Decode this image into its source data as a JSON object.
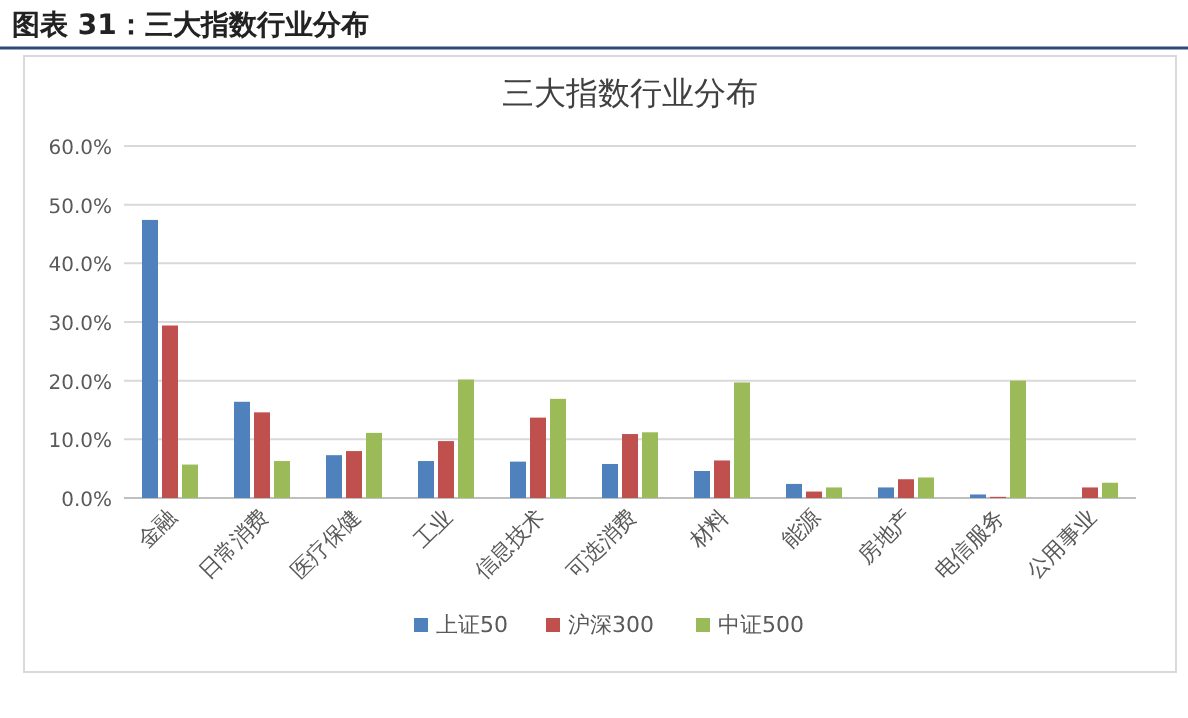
{
  "chart_data": {
    "type": "bar",
    "title": "图表 31：三大指数行业分布",
    "subtitle": "三大指数行业分布",
    "categories": [
      "金融",
      "日常消费",
      "医疗保健",
      "工业",
      "信息技术",
      "可选消费",
      "材料",
      "能源",
      "房地产",
      "电信服务",
      "公用事业"
    ],
    "series": [
      {
        "name": "上证50",
        "color": "#4f81bd",
        "values": [
          47.4,
          16.4,
          7.3,
          6.3,
          6.2,
          5.8,
          4.6,
          2.4,
          1.8,
          0.6,
          0
        ]
      },
      {
        "name": "沪深300",
        "color": "#c0504d",
        "values": [
          29.4,
          14.6,
          8.0,
          9.7,
          13.7,
          10.9,
          6.4,
          1.1,
          3.2,
          0.2,
          1.8
        ]
      },
      {
        "name": "中证500",
        "color": "#9bbb59",
        "values": [
          5.7,
          6.3,
          11.1,
          20.2,
          16.9,
          11.2,
          19.7,
          1.8,
          3.5,
          20.0,
          2.6
        ]
      }
    ],
    "ylim": [
      0,
      60
    ],
    "yticks": [
      {
        "value": 0,
        "label": "0.0%"
      },
      {
        "value": 10,
        "label": "10.0%"
      },
      {
        "value": 20,
        "label": "20.0%"
      },
      {
        "value": 30,
        "label": "30.0%"
      },
      {
        "value": 40,
        "label": "40.0%"
      },
      {
        "value": 50,
        "label": "50.0%"
      },
      {
        "value": 60,
        "label": "60.0%"
      }
    ],
    "grid": "y",
    "legend": "bottom"
  }
}
